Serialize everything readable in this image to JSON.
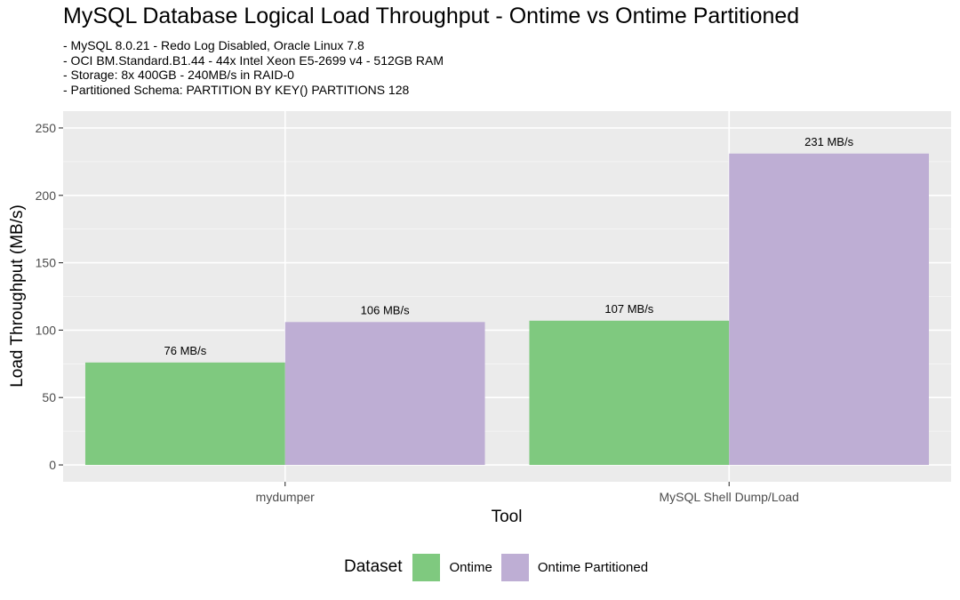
{
  "chart_data": {
    "type": "bar",
    "title": "MySQL Database Logical Load Throughput - Ontime vs Ontime Partitioned",
    "subtitle": [
      "- MySQL 8.0.21 - Redo Log Disabled, Oracle Linux 7.8",
      "- OCI BM.Standard.B1.44 - 44x Intel Xeon E5-2699 v4 - 512GB RAM",
      "- Storage: 8x 400GB - 240MB/s in RAID-0",
      "- Partitioned Schema: PARTITION BY KEY() PARTITIONS 128"
    ],
    "xlabel": "Tool",
    "ylabel": "Load Throughput (MB/s)",
    "categories": [
      "mydumper",
      "MySQL Shell Dump/Load"
    ],
    "series": [
      {
        "name": "Ontime",
        "values": [
          76,
          107
        ],
        "labels": [
          "76 MB/s",
          "107 MB/s"
        ],
        "color": "#7FC97F"
      },
      {
        "name": "Ontime Partitioned",
        "values": [
          106,
          231
        ],
        "labels": [
          "106 MB/s",
          "231 MB/s"
        ],
        "color": "#BEAED4"
      }
    ],
    "yticks": [
      0,
      50,
      100,
      150,
      200,
      250
    ],
    "ylim": [
      -12.5,
      262.5
    ],
    "grid": true,
    "legend_title": "Dataset",
    "legend_position": "bottom"
  }
}
